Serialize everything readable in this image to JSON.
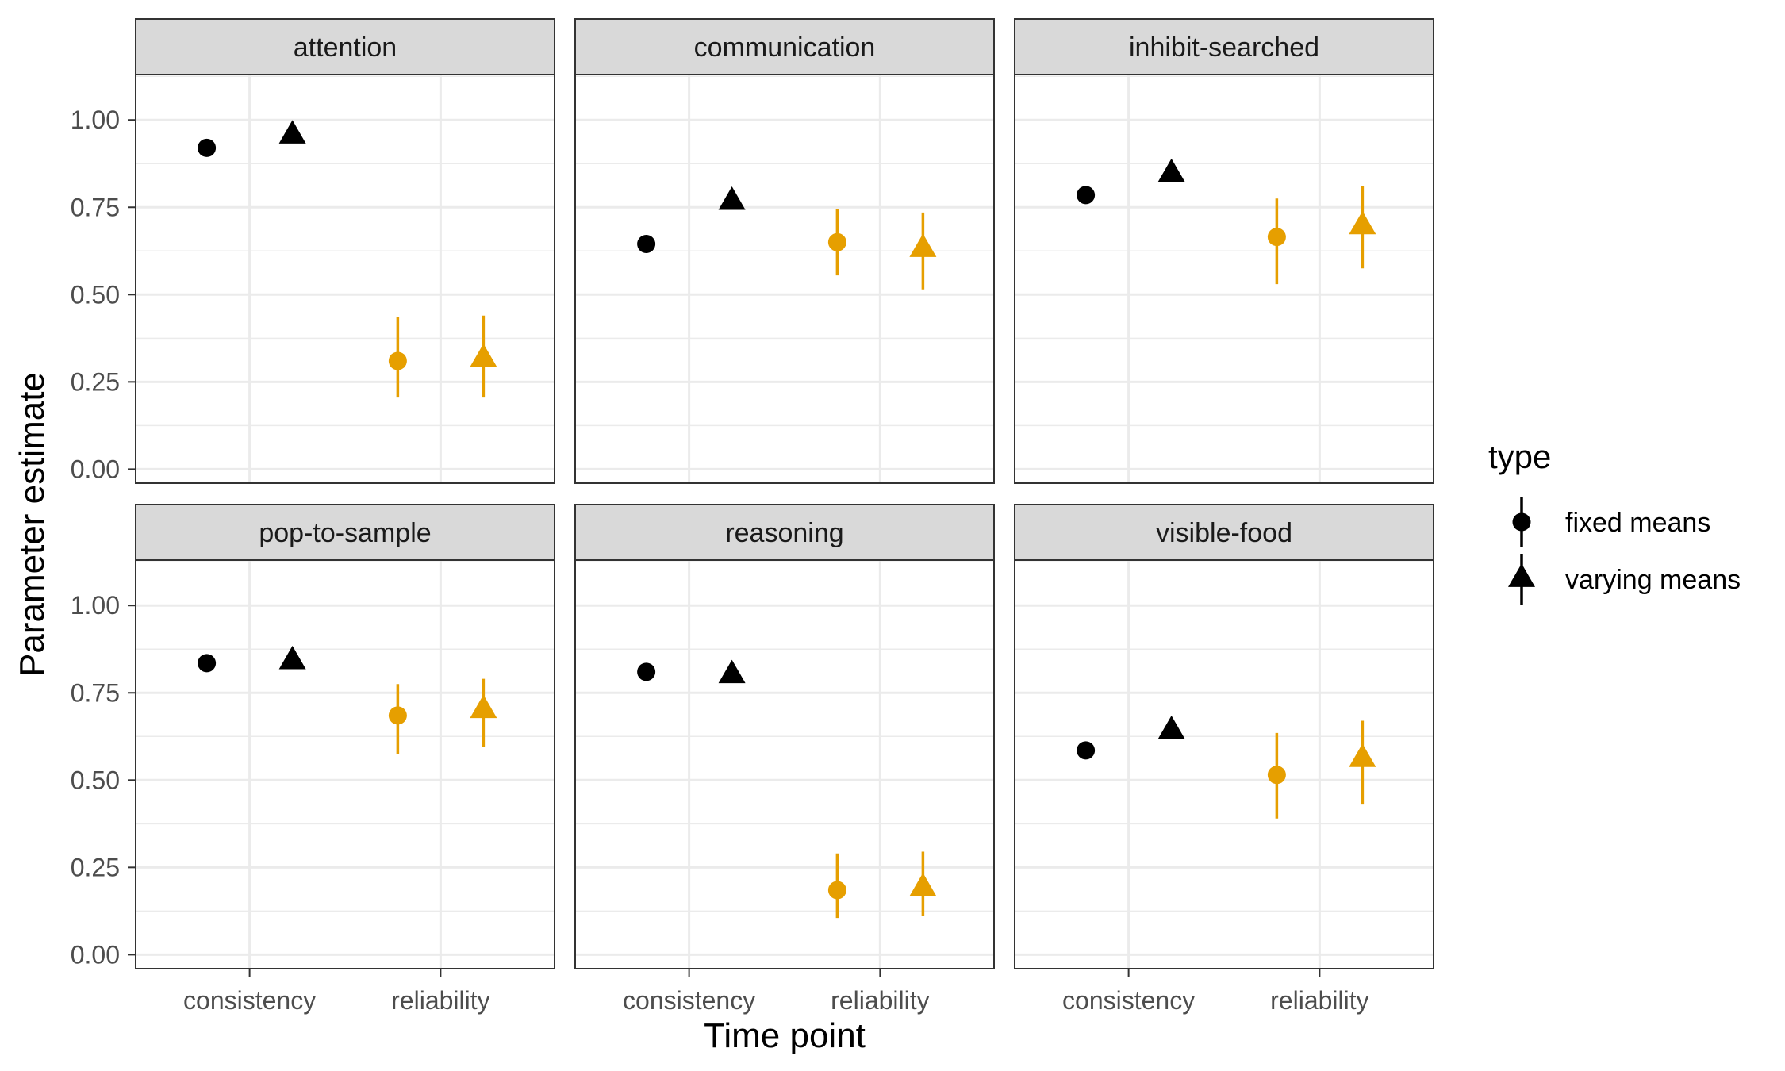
{
  "chart_data": {
    "type": "scatter",
    "subtype": "faceted point-range",
    "xlabel": "Time point",
    "ylabel": "Parameter estimate",
    "categories": [
      "consistency",
      "reliability"
    ],
    "ylim": [
      -0.04,
      1.13
    ],
    "y_ticks": [
      {
        "value": 0.0,
        "label": "0.00"
      },
      {
        "value": 0.25,
        "label": "0.25"
      },
      {
        "value": 0.5,
        "label": "0.50"
      },
      {
        "value": 0.75,
        "label": "0.75"
      },
      {
        "value": 1.0,
        "label": "1.00"
      }
    ],
    "grid": true,
    "legend": {
      "title": "type",
      "position": "right",
      "entries": [
        {
          "label": "fixed means",
          "shape": "circle"
        },
        {
          "label": "varying means",
          "shape": "triangle"
        }
      ]
    },
    "colors": {
      "consistency": "#000000",
      "reliability": "#E69F00"
    },
    "facets": [
      {
        "name": "attention",
        "points": [
          {
            "category": "consistency",
            "type": "fixed means",
            "y": 0.92
          },
          {
            "category": "consistency",
            "type": "varying means",
            "y": 0.955
          },
          {
            "category": "reliability",
            "type": "fixed means",
            "y": 0.31,
            "ymin": 0.205,
            "ymax": 0.435
          },
          {
            "category": "reliability",
            "type": "varying means",
            "y": 0.315,
            "ymin": 0.205,
            "ymax": 0.44
          }
        ]
      },
      {
        "name": "communication",
        "points": [
          {
            "category": "consistency",
            "type": "fixed means",
            "y": 0.645
          },
          {
            "category": "consistency",
            "type": "varying means",
            "y": 0.765
          },
          {
            "category": "reliability",
            "type": "fixed means",
            "y": 0.65,
            "ymin": 0.555,
            "ymax": 0.745
          },
          {
            "category": "reliability",
            "type": "varying means",
            "y": 0.63,
            "ymin": 0.515,
            "ymax": 0.735
          }
        ]
      },
      {
        "name": "inhibit-searched",
        "points": [
          {
            "category": "consistency",
            "type": "fixed means",
            "y": 0.785
          },
          {
            "category": "consistency",
            "type": "varying means",
            "y": 0.845
          },
          {
            "category": "reliability",
            "type": "fixed means",
            "y": 0.665,
            "ymin": 0.53,
            "ymax": 0.775
          },
          {
            "category": "reliability",
            "type": "varying means",
            "y": 0.695,
            "ymin": 0.575,
            "ymax": 0.81
          }
        ]
      },
      {
        "name": "pop-to-sample",
        "points": [
          {
            "category": "consistency",
            "type": "fixed means",
            "y": 0.835
          },
          {
            "category": "consistency",
            "type": "varying means",
            "y": 0.84
          },
          {
            "category": "reliability",
            "type": "fixed means",
            "y": 0.685,
            "ymin": 0.575,
            "ymax": 0.775
          },
          {
            "category": "reliability",
            "type": "varying means",
            "y": 0.7,
            "ymin": 0.595,
            "ymax": 0.79
          }
        ]
      },
      {
        "name": "reasoning",
        "points": [
          {
            "category": "consistency",
            "type": "fixed means",
            "y": 0.81
          },
          {
            "category": "consistency",
            "type": "varying means",
            "y": 0.8
          },
          {
            "category": "reliability",
            "type": "fixed means",
            "y": 0.185,
            "ymin": 0.105,
            "ymax": 0.29
          },
          {
            "category": "reliability",
            "type": "varying means",
            "y": 0.19,
            "ymin": 0.11,
            "ymax": 0.295
          }
        ]
      },
      {
        "name": "visible-food",
        "points": [
          {
            "category": "consistency",
            "type": "fixed means",
            "y": 0.585
          },
          {
            "category": "consistency",
            "type": "varying means",
            "y": 0.64
          },
          {
            "category": "reliability",
            "type": "fixed means",
            "y": 0.515,
            "ymin": 0.39,
            "ymax": 0.635
          },
          {
            "category": "reliability",
            "type": "varying means",
            "y": 0.56,
            "ymin": 0.43,
            "ymax": 0.67
          }
        ]
      }
    ]
  }
}
